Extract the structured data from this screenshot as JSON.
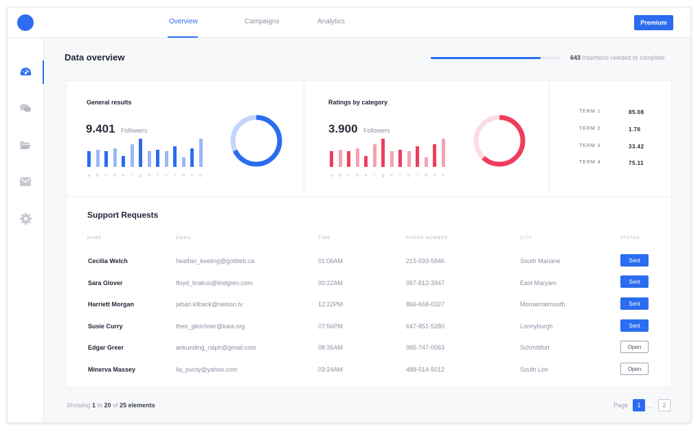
{
  "header": {
    "tabs": [
      {
        "label": "Overview",
        "active": true
      },
      {
        "label": "Campaigns",
        "active": false
      },
      {
        "label": "Analytics",
        "active": false
      }
    ],
    "premium_label": "Premium"
  },
  "sidebar": {
    "icons": [
      "dashboard-icon",
      "chat-icon",
      "folder-icon",
      "mail-icon",
      "gear-icon"
    ],
    "active_index": 0
  },
  "overview": {
    "title": "Data overview",
    "progress_fraction": 0.84,
    "insertions_count": "643",
    "insertions_text": "insertions needed to complete"
  },
  "general": {
    "title": "General results",
    "value": "9.401",
    "unit": "Followers",
    "letters": [
      "a",
      "b",
      "c",
      "d",
      "e",
      "f",
      "g",
      "h",
      "i",
      "o",
      "l",
      "m",
      "n",
      "o"
    ],
    "bar_levels": [
      0.55,
      0.62,
      0.55,
      0.65,
      0.4,
      0.8,
      1.0,
      0.55,
      0.62,
      0.55,
      0.72,
      0.35,
      0.65,
      1.0
    ],
    "bar_shades": [
      "dark",
      "light",
      "dark",
      "light",
      "dark",
      "light",
      "dark",
      "light",
      "dark",
      "light",
      "dark",
      "light",
      "dark",
      "light"
    ],
    "donut_fraction": 0.68,
    "colors": {
      "dark": "#2b6cf0",
      "light": "#9bb8f7",
      "ring_bg": "#c3d5fa"
    }
  },
  "ratings": {
    "title": "Ratings by category",
    "value": "3.900",
    "unit": "Followers",
    "letters": [
      "a",
      "b",
      "c",
      "d",
      "e",
      "f",
      "g",
      "h",
      "i",
      "o",
      "l",
      "m",
      "n",
      "o"
    ],
    "bar_levels": [
      0.55,
      0.62,
      0.55,
      0.65,
      0.4,
      0.8,
      1.0,
      0.55,
      0.62,
      0.55,
      0.72,
      0.35,
      0.8,
      1.0
    ],
    "bar_shades": [
      "dark",
      "light",
      "dark",
      "light",
      "dark",
      "light",
      "dark",
      "light",
      "dark",
      "light",
      "dark",
      "light",
      "dark",
      "light"
    ],
    "donut_fraction": 0.62,
    "colors": {
      "dark": "#ef3e5c",
      "light": "#f4a3b1",
      "ring_bg": "#fbdde2"
    }
  },
  "terms": [
    {
      "label": "TERM 1",
      "value": "85.08"
    },
    {
      "label": "TERM 2",
      "value": "1.76"
    },
    {
      "label": "TERM 3",
      "value": "33.42"
    },
    {
      "label": "TERM 4",
      "value": "75.11"
    }
  ],
  "support": {
    "title": "Support Requests",
    "columns": [
      "NAME",
      "EMAIL",
      "TIME",
      "PHONE NUMBER",
      "CITY",
      "STATUS"
    ],
    "rows": [
      {
        "name": "Cecilia Welch",
        "email": "heather_keeling@gottlieb.ca",
        "time": "01:06AM",
        "phone": "215-593-5846",
        "city": "South Mariane",
        "status": "Sent"
      },
      {
        "name": "Sara Glover",
        "email": "floyd_brakus@lindgren.com",
        "time": "00:22AM",
        "phone": "057-812-3947",
        "city": "East Maryam",
        "status": "Sent"
      },
      {
        "name": "Harriett Morgan",
        "email": "jabari.kilback@nelson.tv",
        "time": "12:22PM",
        "phone": "866-668-0327",
        "city": "Monserratmouth",
        "status": "Sent"
      },
      {
        "name": "Susie Curry",
        "email": "theo_gleichner@kaia.org",
        "time": "07:56PM",
        "phone": "647-851-5280",
        "city": "Lonnyburgh",
        "status": "Sent"
      },
      {
        "name": "Edgar Greer",
        "email": "ankunding_ralph@gmail.com",
        "time": "08:35AM",
        "phone": "985-747-0063",
        "city": "Schmittfurt",
        "status": "Open"
      },
      {
        "name": "Minerva Massey",
        "email": "lia_purdy@yahoo.com",
        "time": "03:24AM",
        "phone": "488-514-5012",
        "city": "South Lori",
        "status": "Open"
      }
    ]
  },
  "pagination": {
    "showing": "Showing",
    "from": "1",
    "to_word": "to",
    "to": "20",
    "of_word": "of",
    "total": "25 elements",
    "page_label": "Page",
    "current_page": "1",
    "ellipsis": "...",
    "last_page": "2"
  }
}
